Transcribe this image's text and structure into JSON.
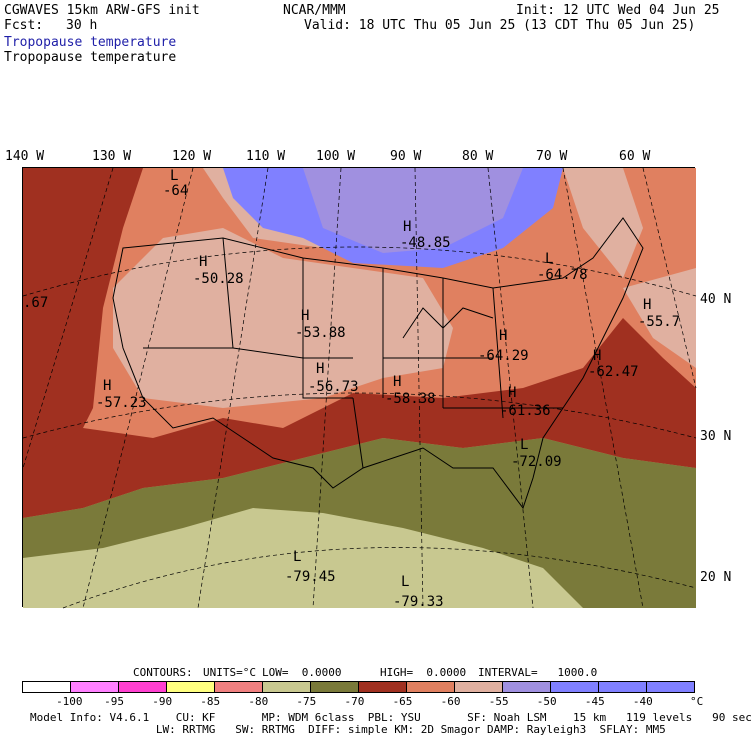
{
  "header": {
    "model": "CGWAVES 15km ARW-GFS init",
    "fcst_label": "Fcst:",
    "fcst_value": "30 h",
    "center": "NCAR/MMM",
    "init": "Init: 12 UTC Wed 04 Jun 25",
    "valid": "Valid: 18 UTC Thu 05 Jun 25 (13 CDT Thu 05 Jun 25)",
    "field_colored": "Tropopause temperature",
    "field_contour": "Tropopause temperature"
  },
  "map": {
    "longitude_labels": [
      "140 W",
      "130 W",
      "120 W",
      "110 W",
      "100 W",
      "90 W",
      "80 W",
      "70 W",
      "60 W"
    ],
    "latitude_labels": [
      "40 N",
      "30 N",
      "20 N"
    ],
    "extrema": [
      {
        "type": "L",
        "value": "-64"
      },
      {
        "type": "H",
        "value": "-48.85"
      },
      {
        "type": "H",
        "value": "-50.28"
      },
      {
        "type": "L",
        "value": "-64.78"
      },
      {
        "type": "H",
        "value": "-55.7"
      },
      {
        "type": "H",
        "value": "-53.88"
      },
      {
        "type": "H",
        "value": "-64.29"
      },
      {
        "type": "H",
        "value": "-62.47"
      },
      {
        "type": "H",
        "value": "-56.73"
      },
      {
        "type": "H",
        "value": "-58.38"
      },
      {
        "type": "H",
        "value": "-57.23"
      },
      {
        "type": "H",
        "value": "-61.36"
      },
      {
        "type": "L",
        "value": "-72.09"
      },
      {
        "type": "L",
        "value": "-79.45"
      },
      {
        "type": "L",
        "value": "-79.33"
      }
    ],
    "edge_value": ".67"
  },
  "contour_info": {
    "contours_label": "CONTOURS:",
    "units": "UNITS=°C",
    "low": "LOW=  0.0000",
    "high": "HIGH=  0.0000",
    "interval": "INTERVAL=   1000.0"
  },
  "colorbar": {
    "colors": [
      "#ffffff",
      "#ff80ff",
      "#ff40d0",
      "#ffff80",
      "#f08080",
      "#c8c890",
      "#7a7a3a",
      "#a03020",
      "#e08060",
      "#e0b0a0",
      "#a090e0",
      "#8080ff",
      "#8080ff",
      "#8080ff"
    ],
    "ticks": [
      "-100",
      "-95",
      "-90",
      "-85",
      "-80",
      "-75",
      "-70",
      "-65",
      "-60",
      "-55",
      "-50",
      "-45",
      "-40"
    ],
    "unit": "°C"
  },
  "footer": {
    "line1": "Model Info: V4.6.1    CU: KF       MP: WDM 6class  PBL: YSU       SF: Noah LSM    15 km   119 levels   90 sec",
    "line2": "                   LW: RRTMG   SW: RRTMG  DIFF: simple KM: 2D Smagor DAMP: Rayleigh3  SFLAY: MM5"
  }
}
